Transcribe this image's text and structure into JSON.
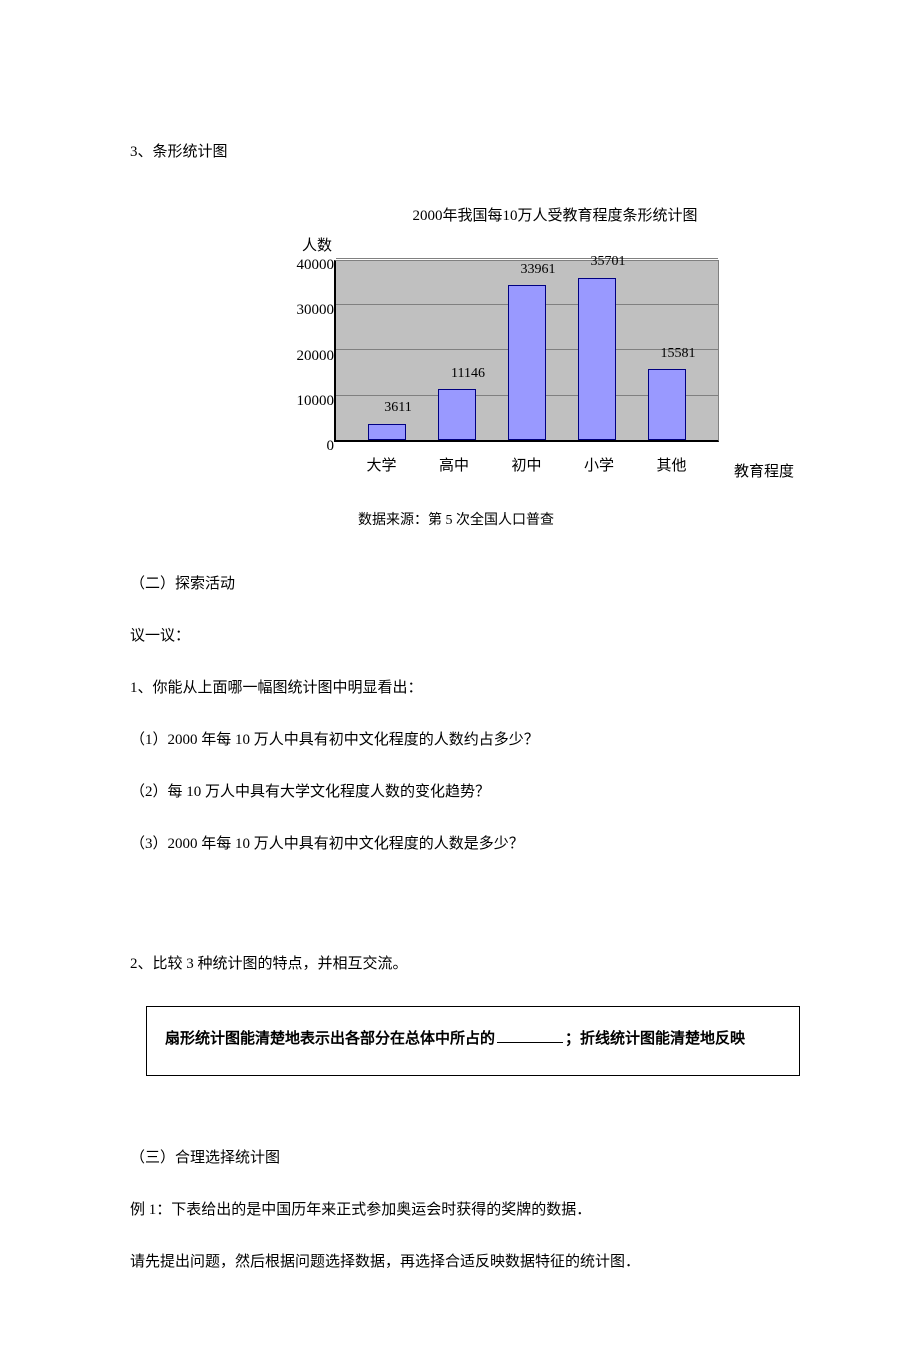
{
  "heading3": "3、条形统计图",
  "chart": {
    "type": "bar",
    "title": "2000年我国每10万人受教育程度条形统计图",
    "y_axis_label": "人数",
    "x_axis_title": "教育程度",
    "categories": [
      "大学",
      "高中",
      "初中",
      "小学",
      "其他"
    ],
    "values": [
      3611,
      11146,
      33961,
      35701,
      15581
    ],
    "ylim": [
      0,
      40000
    ],
    "ytick_step": 10000,
    "y_ticks": [
      "40000",
      "30000",
      "20000",
      "10000",
      "0"
    ],
    "bar_color": "#9999ff",
    "bar_border": "#000080",
    "plot_bg": "#c0c0c0",
    "grid_color": "#808080",
    "source_note": "数据来源：第 5 次全国人口普查"
  },
  "section2_title": "（二）探索活动",
  "discuss": "议一议：",
  "q1_intro": "1、你能从上面哪一幅图统计图中明显看出：",
  "q1_1": "（1）2000 年每 10 万人中具有初中文化程度的人数约占多少？",
  "q1_2": "（2）每 10 万人中具有大学文化程度人数的变化趋势？",
  "q1_3": "（3）2000 年每 10 万人中具有初中文化程度的人数是多少？",
  "q2": "2、比较 3 种统计图的特点，并相互交流。",
  "box_text_pre": "扇形统计图能清楚地表示出各部分在总体中所占的",
  "box_text_post": "；折线统计图能清楚地反映",
  "section3_title": "（三）合理选择统计图",
  "example1": "例 1：下表给出的是中国历年来正式参加奥运会时获得的奖牌的数据．",
  "example1_instr": "请先提出问题，然后根据问题选择数据，再选择合适反映数据特征的统计图．"
}
